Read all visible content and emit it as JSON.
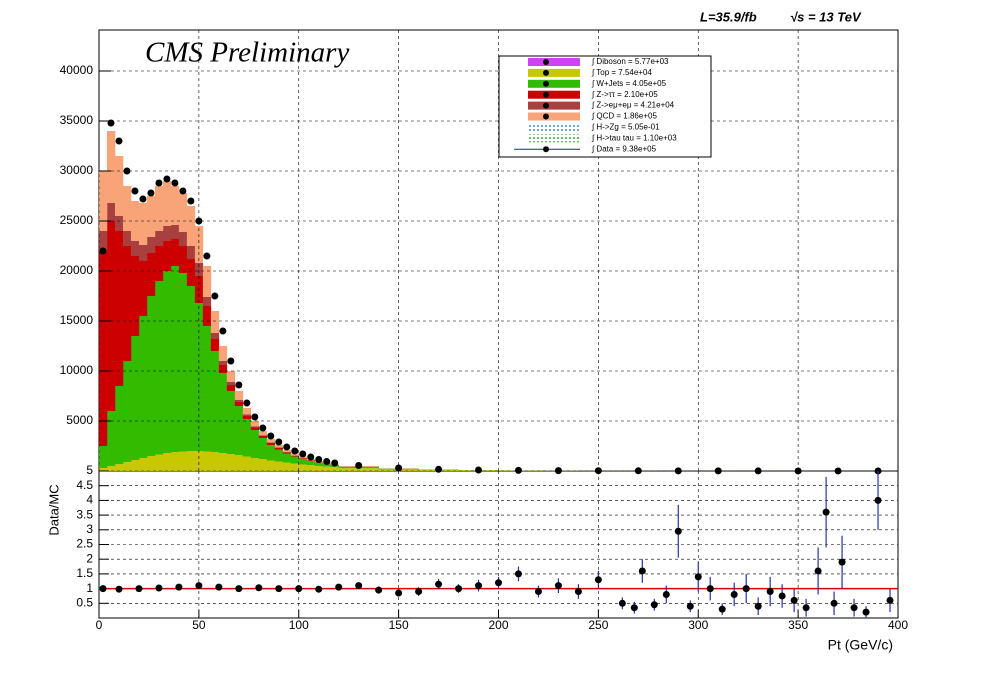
{
  "chart_data": [
    {
      "type": "stacked-histogram",
      "title": "CMS Preliminary",
      "annotations": [
        "L=35.9/fb",
        "√s = 13 TeV"
      ],
      "bins": [
        0,
        4,
        8,
        12,
        16,
        20,
        24,
        28,
        32,
        36,
        40,
        44,
        48,
        52,
        56,
        60,
        64,
        68,
        72,
        76,
        80,
        84,
        88,
        92,
        96,
        100,
        104,
        108,
        112,
        116,
        120,
        140,
        160,
        180,
        200,
        220,
        240,
        260,
        280,
        300,
        320,
        340,
        360,
        380,
        400
      ],
      "xlim": [
        0,
        400
      ],
      "ylim": [
        0,
        44100
      ],
      "yticks": [
        5000,
        10000,
        15000,
        20000,
        25000,
        30000,
        35000,
        40000
      ],
      "grid": true,
      "legend": "top-right",
      "series": [
        {
          "name": "∫ Diboson = 5.77e+03",
          "color": "#cc44ee",
          "style": "fill"
        },
        {
          "name": "∫ Top = 7.54e+04",
          "color": "#c8c800",
          "style": "fill",
          "values": [
            300,
            500,
            700,
            900,
            1100,
            1300,
            1500,
            1650,
            1800,
            1900,
            1950,
            2000,
            2000,
            1950,
            1900,
            1800,
            1700,
            1600,
            1450,
            1300,
            1200,
            1050,
            950,
            850,
            750,
            650,
            580,
            500,
            430,
            380,
            280,
            160,
            100,
            60,
            38,
            25,
            18,
            13,
            9,
            7,
            5,
            4,
            3,
            2
          ]
        },
        {
          "name": "∫ W+Jets = 4.05e+05",
          "color": "#33bb00",
          "style": "fill",
          "values": [
            2200,
            5500,
            7800,
            10100,
            12400,
            14200,
            16000,
            17350,
            18200,
            18600,
            17850,
            16500,
            14800,
            12550,
            10100,
            8000,
            6300,
            4900,
            3750,
            2800,
            2100,
            1550,
            1200,
            900,
            700,
            550,
            420,
            330,
            260,
            200,
            140,
            70,
            40,
            22,
            12,
            7,
            5,
            3,
            2,
            1,
            1,
            1,
            1,
            1
          ]
        },
        {
          "name": "∫ Z->ττ = 2.10e+05",
          "color": "#cc0000",
          "style": "fill",
          "values": [
            19500,
            19000,
            15500,
            11500,
            8000,
            5500,
            4300,
            3500,
            3000,
            2700,
            2700,
            2700,
            2700,
            2000,
            1200,
            800,
            600,
            400,
            300,
            250,
            200,
            200,
            150,
            100,
            80,
            70,
            60,
            50,
            40,
            30,
            20,
            10,
            5,
            3,
            2,
            1,
            1,
            1,
            0,
            0,
            0,
            0,
            0,
            0
          ]
        },
        {
          "name": "∫ Z->eμ+eμ = 4.21e+04",
          "color": "#a84040",
          "style": "fill",
          "values": [
            2000,
            1800,
            1500,
            1500,
            1500,
            1600,
            1600,
            1500,
            1500,
            1400,
            1400,
            1300,
            1300,
            900,
            600,
            400,
            300,
            200,
            150,
            100,
            80,
            60,
            50,
            40,
            30,
            20,
            15,
            10,
            10,
            8,
            5,
            3,
            2,
            1,
            1,
            0,
            0,
            0,
            0,
            0,
            0,
            0,
            0,
            0
          ]
        },
        {
          "name": "∫ QCD = 1.86e+05",
          "color": "#f8a478",
          "style": "fill",
          "values": [
            6000,
            7200,
            6000,
            4500,
            4000,
            4200,
            4100,
            4500,
            4500,
            3900,
            3900,
            4000,
            3700,
            3100,
            2200,
            1500,
            1100,
            900,
            650,
            550,
            420,
            340,
            250,
            210,
            190,
            160,
            125,
            110,
            80,
            62,
            35,
            17,
            3,
            4,
            2,
            2,
            1,
            1,
            1,
            1,
            1,
            0,
            0,
            0
          ]
        },
        {
          "name": "∫ H->Zg = 5.05e-01",
          "color": "#4488dd",
          "style": "hatch"
        },
        {
          "name": "∫ H->tau tau = 1.10e+03",
          "color": "#33aa33",
          "style": "hatch"
        },
        {
          "name": "∫ Data = 9.38e+05",
          "color": "#000000",
          "style": "points",
          "values": [
            22000,
            34800,
            33000,
            30000,
            28000,
            27200,
            27800,
            28800,
            29200,
            28800,
            28000,
            27000,
            25000,
            21500,
            17500,
            14000,
            11000,
            8600,
            6800,
            5400,
            4300,
            3500,
            2900,
            2400,
            2000,
            1700,
            1400,
            1150,
            950,
            800,
            550,
            300,
            170,
            100,
            60,
            40,
            30,
            20,
            15,
            10,
            8,
            6,
            5,
            4
          ]
        }
      ]
    },
    {
      "type": "ratio",
      "x_label": "Pt (GeV/c)",
      "y_label": "Data/MC",
      "xlim": [
        0,
        400
      ],
      "xticks": [
        0,
        50,
        100,
        150,
        200,
        250,
        300,
        350,
        400
      ],
      "ylim": [
        0,
        5
      ],
      "yticks": [
        0.5,
        1,
        1.5,
        2,
        2.5,
        3,
        3.5,
        4,
        4.5,
        5
      ],
      "reference": 1,
      "reference_color": "#dd0000",
      "grid": true,
      "x": [
        2,
        10,
        20,
        30,
        40,
        50,
        60,
        70,
        80,
        90,
        100,
        110,
        120,
        130,
        140,
        150,
        160,
        170,
        180,
        190,
        200,
        210,
        220,
        230,
        240,
        250,
        262,
        268,
        272,
        278,
        284,
        290,
        296,
        300,
        306,
        312,
        318,
        324,
        330,
        336,
        342,
        348,
        354,
        360,
        364,
        368,
        372,
        378,
        384,
        390,
        396
      ],
      "values": [
        1.0,
        0.98,
        1.0,
        1.02,
        1.05,
        1.1,
        1.05,
        1.0,
        1.03,
        1.0,
        1.0,
        0.98,
        1.05,
        1.1,
        0.95,
        0.85,
        0.9,
        1.15,
        1.0,
        1.1,
        1.2,
        1.5,
        0.9,
        1.1,
        0.9,
        1.3,
        0.5,
        0.35,
        1.6,
        0.45,
        0.8,
        2.95,
        0.4,
        1.4,
        1.0,
        0.3,
        0.8,
        1.0,
        0.4,
        0.9,
        0.75,
        0.6,
        0.35,
        1.6,
        3.6,
        0.5,
        1.9,
        0.35,
        0.2,
        4.0,
        0.6
      ],
      "errors": [
        0.01,
        0.01,
        0.01,
        0.01,
        0.01,
        0.01,
        0.01,
        0.02,
        0.03,
        0.04,
        0.05,
        0.06,
        0.08,
        0.1,
        0.12,
        0.12,
        0.15,
        0.18,
        0.15,
        0.2,
        0.2,
        0.25,
        0.2,
        0.25,
        0.25,
        0.3,
        0.2,
        0.2,
        0.4,
        0.2,
        0.3,
        0.9,
        0.2,
        0.5,
        0.4,
        0.2,
        0.4,
        0.5,
        0.3,
        0.5,
        0.4,
        0.4,
        0.3,
        0.8,
        1.2,
        0.4,
        0.9,
        0.3,
        0.2,
        1.0,
        0.4
      ],
      "color": "#000000",
      "error_color": "#2233aa"
    }
  ]
}
